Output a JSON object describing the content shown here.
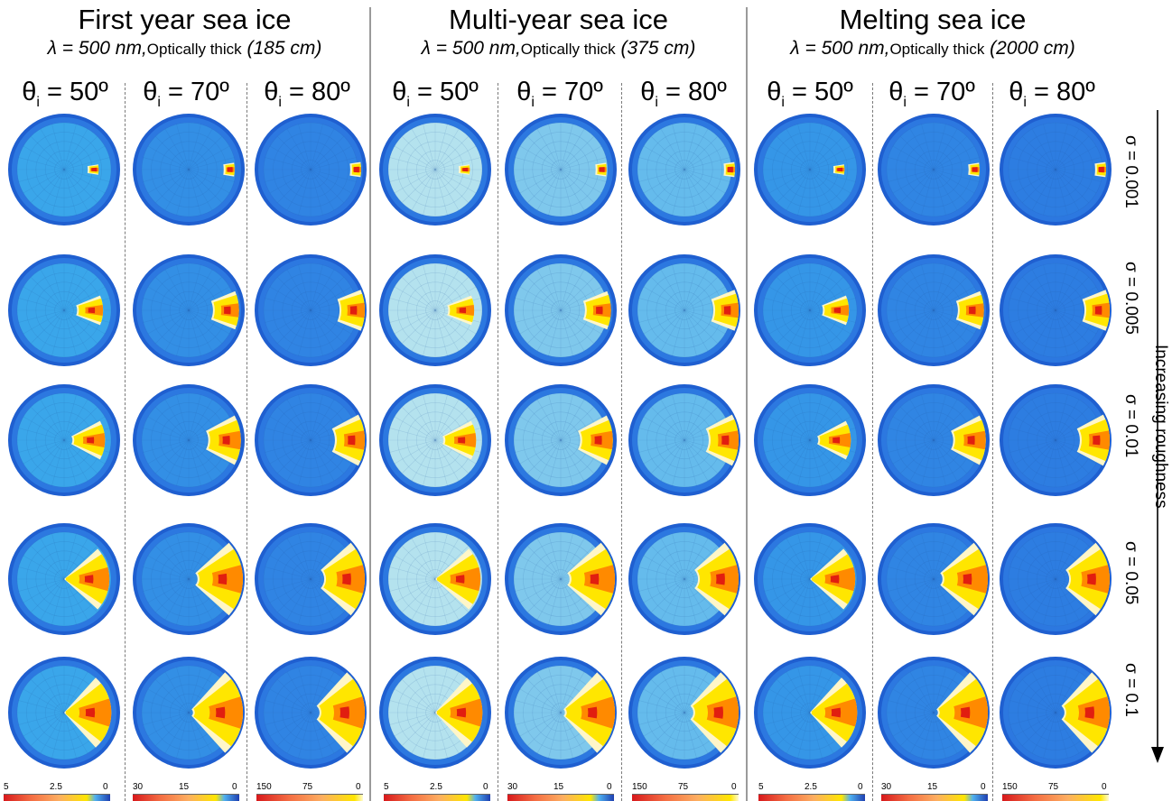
{
  "groups": [
    {
      "title": "First year sea ice",
      "lambda": "λ = 500 nm,",
      "optical": "Optically thick",
      "thickness": "(185 cm)",
      "brightness": 0.0,
      "colorbars": [
        {
          "ticks": [
            "5",
            "2.5",
            "0"
          ],
          "end": "blue"
        },
        {
          "ticks": [
            "30",
            "15",
            "0"
          ],
          "end": "blue"
        },
        {
          "ticks": [
            "150",
            "75",
            "0"
          ],
          "end": "yellow"
        }
      ]
    },
    {
      "title": "Multi-year sea ice",
      "lambda": "λ = 500 nm,",
      "optical": "Optically thick",
      "thickness": "(375 cm)",
      "brightness": 1.0,
      "colorbars": [
        {
          "ticks": [
            "5",
            "2.5",
            "0"
          ],
          "end": "blue"
        },
        {
          "ticks": [
            "30",
            "15",
            "0"
          ],
          "end": "blue"
        },
        {
          "ticks": [
            "150",
            "75",
            "0"
          ],
          "end": "yellow"
        }
      ]
    },
    {
      "title": "Melting sea ice",
      "lambda": "λ = 500 nm,",
      "optical": "Optically thick",
      "thickness": "(2000 cm)",
      "brightness": -0.6,
      "colorbars": [
        {
          "ticks": [
            "5",
            "2.5",
            "0"
          ],
          "end": "blue"
        },
        {
          "ticks": [
            "30",
            "15",
            "0"
          ],
          "end": "blue"
        },
        {
          "ticks": [
            "150",
            "75",
            "0"
          ],
          "end": "yellow"
        }
      ]
    }
  ],
  "incidence_angles": [
    {
      "theta": "θ",
      "sub": "i",
      "value": " = 50º",
      "deg": 50
    },
    {
      "theta": "θ",
      "sub": "i",
      "value": " = 70º",
      "deg": 70
    },
    {
      "theta": "θ",
      "sub": "i",
      "value": " = 80º",
      "deg": 80
    }
  ],
  "roughness_levels": [
    {
      "label": "σ = 0.001",
      "sigma": 0.001
    },
    {
      "label": "σ = 0.005",
      "sigma": 0.005
    },
    {
      "label": "σ = 0.01",
      "sigma": 0.01
    },
    {
      "label": "σ = 0.05",
      "sigma": 0.05
    },
    {
      "label": "σ = 0.1",
      "sigma": 0.1
    }
  ],
  "roughness_axis_label": "Increasing roughness",
  "colors": {
    "outer_ring": "#1f5fd0",
    "disk_dark": "#2c78e0",
    "disk_mid": "#3aa6ea",
    "disk_light": "#c9ecef",
    "specular_yellow": "#ffe600",
    "specular_orange": "#ff8a00",
    "specular_red": "#e11e10"
  }
}
